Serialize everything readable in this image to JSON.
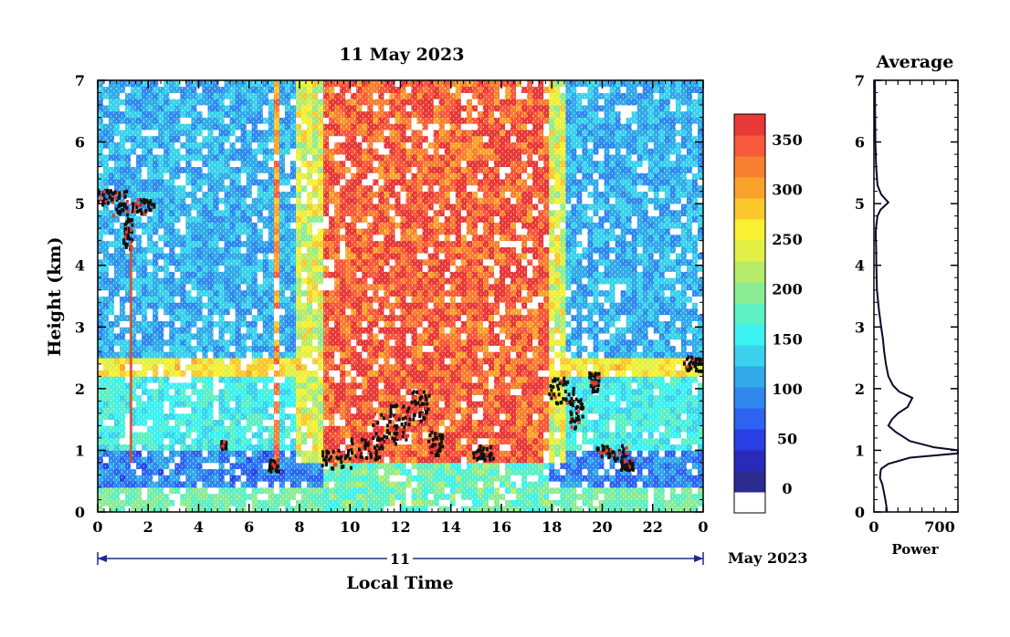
{
  "main": {
    "title": "11 May 2023",
    "xlabel": "Local Time",
    "ylabel": "Height (km)",
    "date_label": "11",
    "month_label": "May 2023"
  },
  "chart_data": [
    {
      "type": "heatmap",
      "title": "11 May 2023",
      "xlabel": "Local Time",
      "ylabel": "Height (km)",
      "xlim": [
        0,
        24
      ],
      "ylim": [
        0,
        7
      ],
      "x_tick_labels": [
        "0",
        "2",
        "4",
        "6",
        "8",
        "10",
        "12",
        "14",
        "16",
        "18",
        "20",
        "22",
        "0"
      ],
      "y_ticks": [
        0,
        1,
        2,
        3,
        4,
        5,
        6,
        7
      ],
      "colorbar": {
        "min": 0,
        "max": 350,
        "tick_values": [
          0,
          50,
          100,
          150,
          200,
          250,
          300,
          350
        ],
        "colors": [
          "#ffffff",
          "#2b2b8f",
          "#2a2ab8",
          "#2a3ee6",
          "#2d63f0",
          "#3088ee",
          "#32aaea",
          "#3ad2ec",
          "#3cf2f2",
          "#5cf0c4",
          "#8cec94",
          "#b6ec6a",
          "#e2f046",
          "#f8f030",
          "#fcc82c",
          "#f8a42c",
          "#f88030",
          "#f8583c",
          "#e83838"
        ]
      },
      "features": {
        "daytime_high_power_start": 9,
        "daytime_high_power_end": 18,
        "cloud_layer_height_km": 5.0,
        "boundary_layer_height_km": 1.0
      }
    },
    {
      "type": "line",
      "title": "Average",
      "xlabel": "Power",
      "xlim": [
        0,
        700
      ],
      "ylim": [
        0,
        7
      ],
      "x_tick_labels": [
        "0",
        "700"
      ],
      "y_ticks": [
        0,
        1,
        2,
        3,
        4,
        5,
        6,
        7
      ],
      "x": [
        110,
        100,
        85,
        70,
        50,
        55,
        60,
        120,
        300,
        760,
        790,
        500,
        300,
        180,
        120,
        150,
        200,
        280,
        320,
        210,
        160,
        120,
        100,
        85,
        75,
        60,
        40,
        25,
        20,
        18,
        15,
        15,
        20,
        30,
        55,
        120,
        60,
        30,
        18,
        12,
        10,
        8
      ],
      "y": [
        0.0,
        0.15,
        0.3,
        0.45,
        0.55,
        0.65,
        0.7,
        0.78,
        0.88,
        0.95,
        1.0,
        1.05,
        1.15,
        1.3,
        1.4,
        1.5,
        1.6,
        1.7,
        1.85,
        1.95,
        2.05,
        2.2,
        2.4,
        2.6,
        2.8,
        3.0,
        3.3,
        3.6,
        4.0,
        4.3,
        4.45,
        4.55,
        4.65,
        4.8,
        4.9,
        5.02,
        5.15,
        5.3,
        5.6,
        6.0,
        6.5,
        7.0
      ]
    }
  ]
}
